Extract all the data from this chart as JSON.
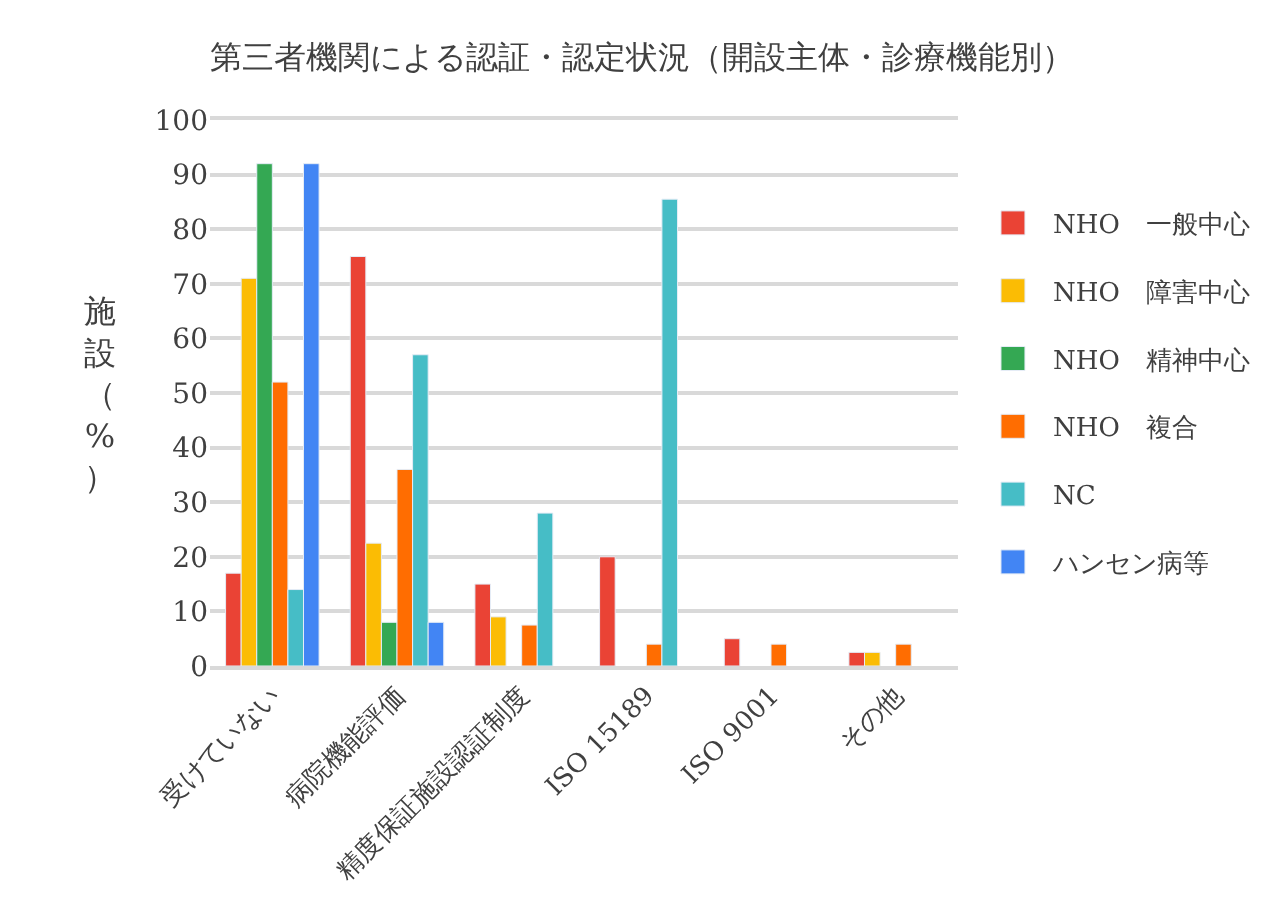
{
  "chart_data": {
    "type": "bar",
    "title": "第三者機関による認証・認定状況（開設主体・診療機能別）",
    "ylabel": "施設（%）",
    "categories": [
      "受けていない",
      "病院機能評価",
      "精度保証施設認証制度",
      "ISO 15189",
      "ISO 9001",
      "その他"
    ],
    "series": [
      {
        "name": "NHO　一般中心",
        "color": "#ea4335",
        "values": [
          17,
          75,
          15,
          20,
          5,
          2.5
        ]
      },
      {
        "name": "NHO　障害中心",
        "color": "#fbbc04",
        "values": [
          71,
          22.5,
          9,
          null,
          null,
          2.5
        ]
      },
      {
        "name": "NHO　精神中心",
        "color": "#34a853",
        "values": [
          92,
          8,
          null,
          null,
          null,
          null
        ]
      },
      {
        "name": "NHO　複合",
        "color": "#ff6d01",
        "values": [
          52,
          36,
          7.5,
          4,
          4,
          4
        ]
      },
      {
        "name": "NC",
        "color": "#46bdc6",
        "values": [
          14,
          57,
          28,
          85.5,
          null,
          null
        ]
      },
      {
        "name": "ハンセン病等",
        "color": "#4285f4",
        "values": [
          92,
          8,
          null,
          null,
          null,
          null
        ]
      }
    ],
    "ylim": [
      0,
      100
    ],
    "yticks": [
      0,
      10,
      20,
      30,
      40,
      50,
      60,
      70,
      80,
      90,
      100
    ],
    "grid": "y",
    "legend": "right"
  }
}
